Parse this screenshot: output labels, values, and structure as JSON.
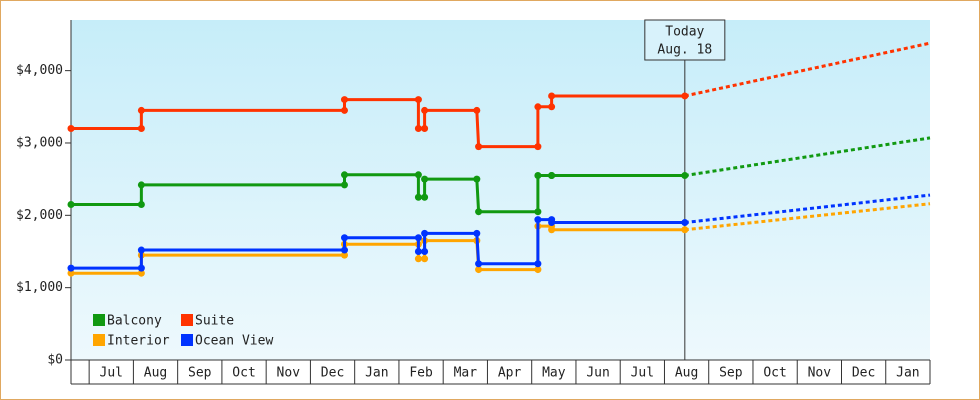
{
  "chart_data": {
    "type": "line",
    "x": [
      -0.41,
      1.18,
      1.18,
      5.77,
      5.77,
      7.44,
      7.44,
      7.58,
      7.58,
      8.76,
      8.8,
      10.14,
      10.14,
      10.45,
      10.45,
      13.46
    ],
    "projection_x": [
      13.46,
      19.0
    ],
    "series": [
      {
        "name": "Balcony",
        "color": "#119911",
        "values": [
          2150,
          2150,
          2420,
          2420,
          2560,
          2560,
          2250,
          2250,
          2500,
          2500,
          2050,
          2050,
          2550,
          2550,
          2550,
          2550
        ],
        "projection": [
          2550,
          3070
        ]
      },
      {
        "name": "Suite",
        "color": "#ff3300",
        "values": [
          3200,
          3200,
          3450,
          3450,
          3600,
          3600,
          3200,
          3200,
          3450,
          3450,
          2950,
          2950,
          3500,
          3500,
          3650,
          3650
        ],
        "projection": [
          3650,
          4380
        ]
      },
      {
        "name": "Interior",
        "color": "#ffa500",
        "values": [
          1200,
          1200,
          1450,
          1450,
          1600,
          1600,
          1400,
          1400,
          1650,
          1650,
          1250,
          1250,
          1850,
          1850,
          1800,
          1800
        ],
        "projection": [
          1800,
          2160
        ]
      },
      {
        "name": "Ocean View",
        "color": "#0033ff",
        "values": [
          1270,
          1270,
          1520,
          1520,
          1690,
          1690,
          1500,
          1500,
          1750,
          1750,
          1330,
          1330,
          1940,
          1940,
          1900,
          1900
        ],
        "projection": [
          1900,
          2280
        ]
      }
    ],
    "annotation": {
      "x": 13.46,
      "lines": [
        "Today",
        "Aug. 18"
      ]
    },
    "xlim": [
      -0.41,
      19.0
    ],
    "xticks": [
      {
        "value": 0.5,
        "label": "Jul"
      },
      {
        "value": 1.5,
        "label": "Aug"
      },
      {
        "value": 2.5,
        "label": "Sep"
      },
      {
        "value": 3.5,
        "label": "Oct"
      },
      {
        "value": 4.5,
        "label": "Nov"
      },
      {
        "value": 5.5,
        "label": "Dec"
      },
      {
        "value": 6.5,
        "label": "Jan"
      },
      {
        "value": 7.5,
        "label": "Feb"
      },
      {
        "value": 8.5,
        "label": "Mar"
      },
      {
        "value": 9.5,
        "label": "Apr"
      },
      {
        "value": 10.5,
        "label": "May"
      },
      {
        "value": 11.5,
        "label": "Jun"
      },
      {
        "value": 12.5,
        "label": "Jul"
      },
      {
        "value": 13.5,
        "label": "Aug"
      },
      {
        "value": 14.5,
        "label": "Sep"
      },
      {
        "value": 15.5,
        "label": "Oct"
      },
      {
        "value": 16.5,
        "label": "Nov"
      },
      {
        "value": 17.5,
        "label": "Dec"
      },
      {
        "value": 18.5,
        "label": "Jan"
      }
    ],
    "ylim": [
      0,
      4700
    ],
    "yticks": [
      {
        "value": 0,
        "label": "$0"
      },
      {
        "value": 1000,
        "label": "$1,000"
      },
      {
        "value": 2000,
        "label": "$2,000"
      },
      {
        "value": 3000,
        "label": "$3,000"
      },
      {
        "value": 4000,
        "label": "$4,000"
      }
    ],
    "legend": "lower left"
  }
}
